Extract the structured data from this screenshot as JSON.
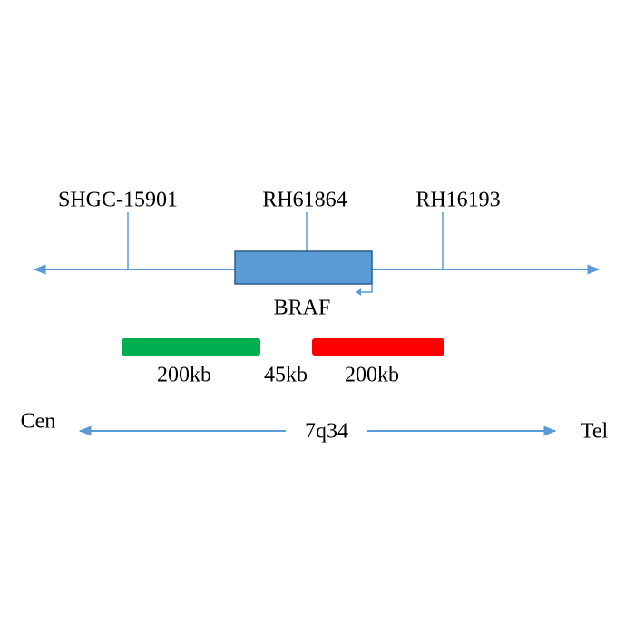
{
  "markers": [
    {
      "label": "SHGC-15901"
    },
    {
      "label": "RH61864"
    },
    {
      "label": "RH16193"
    }
  ],
  "gene": {
    "label": "BRAF"
  },
  "probes": [
    {
      "label": "200kb"
    },
    {
      "label": "45kb"
    },
    {
      "label": "200kb"
    }
  ],
  "chromosome": {
    "left": "Cen",
    "band": "7q34",
    "right": "Tel"
  }
}
